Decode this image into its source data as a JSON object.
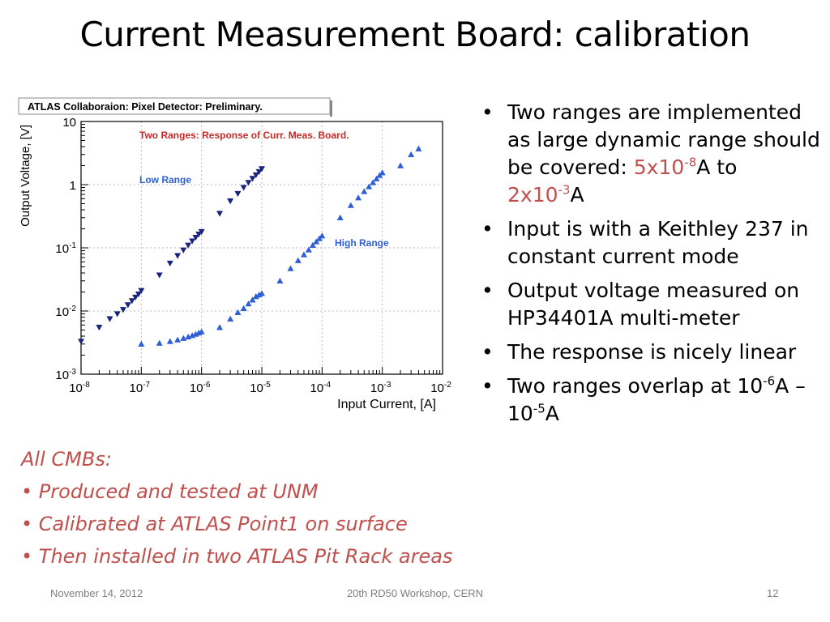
{
  "slide": {
    "title": "Current Measurement Board: calibration",
    "footer_date": "November 14, 2012",
    "footer_center": "20th RD50 Workshop, CERN",
    "footer_page": "12"
  },
  "bullets": [
    {
      "pre": "Two ranges are implemented as large dynamic range should be covered: ",
      "v1": "5x10",
      "e1": "-8",
      "mid": "A to ",
      "v2": "2x10",
      "e2": "-3",
      "post": "A"
    },
    {
      "text": "Input is with a Keithley 237 in constant current mode"
    },
    {
      "text": "Output voltage measured on HP34401A multi-meter"
    },
    {
      "text": "The response is nicely linear"
    },
    {
      "a": "Two ranges overlap at 10",
      "e1": "-6",
      "b": "A – 10",
      "e2": "-5",
      "c": "A"
    }
  ],
  "notes": {
    "heading": "All CMBs:",
    "items": [
      "Produced and tested at UNM",
      "Calibrated at ATLAS Point1 on surface",
      "Then installed in two ATLAS Pit Rack areas"
    ]
  },
  "chart_data": {
    "type": "scatter",
    "title": "ATLAS Collaboraion: Pixel Detector: Preliminary.",
    "subtitle": "Two Ranges: Response of Curr. Meas. Board.",
    "xlabel": "Input Current, [A]",
    "ylabel": "Output Voltage, [V]",
    "xscale": "log",
    "yscale": "log",
    "xlim": [
      1e-08,
      0.01
    ],
    "ylim": [
      0.001,
      10
    ],
    "grid": true,
    "x_ticks": [
      "10-8",
      "10-7",
      "10-6",
      "10-5",
      "10-4",
      "10-3",
      "10-2"
    ],
    "y_ticks": [
      "10-3",
      "10-2",
      "10-1",
      "1",
      "10"
    ],
    "colors": {
      "low": "#1a237e",
      "high": "#2e5fd6",
      "subtitle": "#c62828"
    },
    "series": [
      {
        "name": "Low Range",
        "marker": "triangle-down",
        "x": [
          1e-08,
          2e-08,
          3e-08,
          4e-08,
          5e-08,
          6e-08,
          7e-08,
          8e-08,
          9e-08,
          1e-07,
          2e-07,
          3e-07,
          4e-07,
          5e-07,
          6e-07,
          7e-07,
          8e-07,
          9e-07,
          1e-06,
          2e-06,
          3e-06,
          4e-06,
          5e-06,
          6e-06,
          7e-06,
          8e-06,
          9e-06,
          1e-05
        ],
        "y": [
          0.0033,
          0.0055,
          0.0075,
          0.009,
          0.0105,
          0.0125,
          0.0145,
          0.0165,
          0.0185,
          0.021,
          0.037,
          0.057,
          0.075,
          0.092,
          0.11,
          0.128,
          0.146,
          0.164,
          0.18,
          0.35,
          0.55,
          0.72,
          0.9,
          1.08,
          1.25,
          1.42,
          1.6,
          1.78
        ]
      },
      {
        "name": "High Range",
        "marker": "triangle-up",
        "x": [
          1e-07,
          2e-07,
          3e-07,
          4e-07,
          5e-07,
          6e-07,
          7e-07,
          8e-07,
          9e-07,
          1e-06,
          2e-06,
          3e-06,
          4e-06,
          5e-06,
          6e-06,
          7e-06,
          8e-06,
          9e-06,
          1e-05,
          2e-05,
          3e-05,
          4e-05,
          5e-05,
          6e-05,
          7e-05,
          8e-05,
          9e-05,
          0.0001,
          0.0002,
          0.0003,
          0.0004,
          0.0005,
          0.0006,
          0.0007,
          0.0008,
          0.0009,
          0.001,
          0.002,
          0.003,
          0.004
        ],
        "y": [
          0.003,
          0.0031,
          0.0033,
          0.0035,
          0.0037,
          0.0039,
          0.0041,
          0.0043,
          0.0045,
          0.0047,
          0.0055,
          0.0075,
          0.0095,
          0.011,
          0.013,
          0.015,
          0.017,
          0.018,
          0.019,
          0.03,
          0.047,
          0.063,
          0.078,
          0.093,
          0.11,
          0.125,
          0.14,
          0.155,
          0.3,
          0.47,
          0.62,
          0.78,
          0.93,
          1.08,
          1.24,
          1.4,
          1.55,
          2.0,
          3.0,
          3.7
        ]
      }
    ]
  }
}
